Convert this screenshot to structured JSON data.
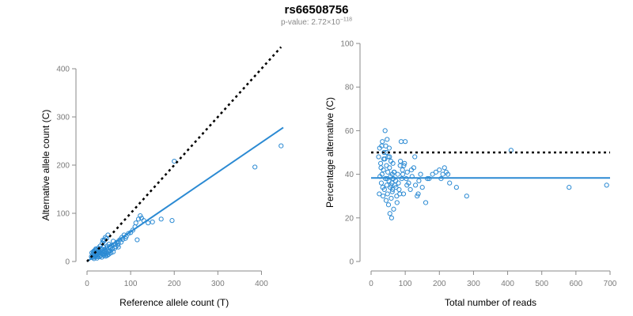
{
  "title": "rs66508756",
  "subtitle": {
    "prefix": "p-value: 2.72×10",
    "exponent": "−118"
  },
  "chart_data": [
    {
      "type": "scatter",
      "xlabel": "Reference allele count (T)",
      "ylabel": "Alternative allele count (C)",
      "xlim": [
        0,
        450
      ],
      "ylim": [
        0,
        400
      ],
      "xticks": [
        0,
        100,
        200,
        300,
        400
      ],
      "yticks": [
        0,
        100,
        200,
        300,
        400
      ],
      "grid": false,
      "series": [
        {
          "role": "observations",
          "points": [
            [
              10,
              10
            ],
            [
              11,
              18
            ],
            [
              12,
              8
            ],
            [
              13,
              14
            ],
            [
              14,
              20
            ],
            [
              15,
              12
            ],
            [
              16,
              22
            ],
            [
              17,
              9
            ],
            [
              18,
              16
            ],
            [
              19,
              24
            ],
            [
              20,
              11
            ],
            [
              21,
              19
            ],
            [
              22,
              14
            ],
            [
              23,
              7
            ],
            [
              24,
              21
            ],
            [
              25,
              17
            ],
            [
              26,
              12
            ],
            [
              27,
              25
            ],
            [
              28,
              15
            ],
            [
              29,
              10
            ],
            [
              30,
              20
            ],
            [
              31,
              13
            ],
            [
              32,
              27
            ],
            [
              33,
              18
            ],
            [
              34,
              9
            ],
            [
              35,
              16
            ],
            [
              36,
              22
            ],
            [
              37,
              14
            ],
            [
              38,
              30
            ],
            [
              39,
              12
            ],
            [
              40,
              19
            ],
            [
              41,
              25
            ],
            [
              42,
              16
            ],
            [
              43,
              11
            ],
            [
              44,
              21
            ],
            [
              45,
              28
            ],
            [
              46,
              17
            ],
            [
              47,
              13
            ],
            [
              48,
              24
            ],
            [
              49,
              20
            ],
            [
              50,
              15
            ],
            [
              52,
              30
            ],
            [
              53,
              22
            ],
            [
              55,
              18
            ],
            [
              56,
              33
            ],
            [
              58,
              26
            ],
            [
              60,
              20
            ],
            [
              62,
              35
            ],
            [
              64,
              28
            ],
            [
              66,
              31
            ],
            [
              68,
              40
            ],
            [
              70,
              34
            ],
            [
              72,
              38
            ],
            [
              75,
              45
            ],
            [
              78,
              40
            ],
            [
              80,
              50
            ],
            [
              82,
              46
            ],
            [
              85,
              55
            ],
            [
              88,
              48
            ],
            [
              90,
              52
            ],
            [
              35,
              38
            ],
            [
              40,
              45
            ],
            [
              45,
              48
            ],
            [
              48,
              55
            ],
            [
              42,
              50
            ],
            [
              36,
              44
            ],
            [
              30,
              32
            ],
            [
              26,
              28
            ],
            [
              22,
              24
            ],
            [
              38,
              42
            ],
            [
              95,
              58
            ],
            [
              100,
              60
            ],
            [
              105,
              65
            ],
            [
              110,
              72
            ],
            [
              112,
              80
            ],
            [
              115,
              45
            ],
            [
              118,
              88
            ],
            [
              122,
              95
            ],
            [
              125,
              90
            ],
            [
              130,
              85
            ],
            [
              140,
              80
            ],
            [
              150,
              82
            ],
            [
              170,
              88
            ],
            [
              195,
              85
            ],
            [
              200,
              208
            ],
            [
              385,
              196
            ],
            [
              445,
              240
            ],
            [
              14,
              16
            ],
            [
              16,
              6
            ],
            [
              18,
              12
            ],
            [
              20,
              26
            ],
            [
              24,
              10
            ],
            [
              28,
              22
            ],
            [
              32,
              18
            ],
            [
              34,
              26
            ],
            [
              44,
              14
            ],
            [
              46,
              32
            ],
            [
              50,
              36
            ],
            [
              54,
              28
            ],
            [
              60,
              42
            ],
            [
              65,
              36
            ],
            [
              72,
              30
            ]
          ]
        },
        {
          "role": "fitted-line",
          "x": [
            0,
            450
          ],
          "y": [
            0,
            278
          ]
        },
        {
          "role": "reference-line",
          "x": [
            0,
            445
          ],
          "y": [
            0,
            445
          ]
        }
      ]
    },
    {
      "type": "scatter",
      "xlabel": "Total number of reads",
      "ylabel": "Percentage alternative (C)",
      "xlim": [
        0,
        700
      ],
      "ylim": [
        0,
        100
      ],
      "xticks": [
        0,
        100,
        200,
        300,
        400,
        500,
        600,
        700
      ],
      "yticks": [
        0,
        20,
        40,
        60,
        80,
        100
      ],
      "grid": false,
      "series": [
        {
          "role": "observations",
          "points": [
            [
              22,
              48
            ],
            [
              25,
              52
            ],
            [
              28,
              45
            ],
            [
              30,
              36
            ],
            [
              32,
              40
            ],
            [
              33,
              55
            ],
            [
              35,
              30
            ],
            [
              36,
              42
            ],
            [
              38,
              50
            ],
            [
              39,
              33
            ],
            [
              40,
              47
            ],
            [
              41,
              60
            ],
            [
              42,
              38
            ],
            [
              43,
              53
            ],
            [
              44,
              28
            ],
            [
              45,
              44
            ],
            [
              46,
              35
            ],
            [
              47,
              56
            ],
            [
              48,
              31
            ],
            [
              49,
              41
            ],
            [
              50,
              48
            ],
            [
              51,
              26
            ],
            [
              52,
              37
            ],
            [
              53,
              52
            ],
            [
              54,
              43
            ],
            [
              55,
              22
            ],
            [
              56,
              34
            ],
            [
              57,
              39
            ],
            [
              58,
              46
            ],
            [
              59,
              29
            ],
            [
              60,
              20
            ],
            [
              61,
              36
            ],
            [
              62,
              40
            ],
            [
              63,
              33
            ],
            [
              64,
              45
            ],
            [
              65,
              38
            ],
            [
              66,
              24
            ],
            [
              68,
              41
            ],
            [
              70,
              35
            ],
            [
              72,
              37
            ],
            [
              75,
              30
            ],
            [
              78,
              40
            ],
            [
              80,
              36
            ],
            [
              82,
              33
            ],
            [
              85,
              44
            ],
            [
              88,
              55
            ],
            [
              90,
              38
            ],
            [
              92,
              42
            ],
            [
              95,
              31
            ],
            [
              98,
              45
            ],
            [
              100,
              55
            ],
            [
              103,
              38
            ],
            [
              106,
              41
            ],
            [
              110,
              36
            ],
            [
              115,
              33
            ],
            [
              120,
              39
            ],
            [
              125,
              43
            ],
            [
              130,
              35
            ],
            [
              135,
              30
            ],
            [
              140,
              37
            ],
            [
              145,
              40
            ],
            [
              150,
              34
            ],
            [
              160,
              27
            ],
            [
              170,
              38
            ],
            [
              180,
              40
            ],
            [
              190,
              41
            ],
            [
              200,
              42
            ],
            [
              210,
              40
            ],
            [
              215,
              43
            ],
            [
              220,
              41
            ],
            [
              230,
              36
            ],
            [
              250,
              34
            ],
            [
              280,
              30
            ],
            [
              410,
              51
            ],
            [
              580,
              34
            ],
            [
              690,
              35
            ],
            [
              26,
              39
            ],
            [
              34,
              34
            ],
            [
              37,
              47
            ],
            [
              45,
              50
            ],
            [
              54,
              48
            ],
            [
              58,
              35
            ],
            [
              67,
              41
            ],
            [
              76,
              27
            ],
            [
              86,
              46
            ],
            [
              96,
              44
            ],
            [
              105,
              35
            ],
            [
              118,
              42
            ],
            [
              128,
              48
            ],
            [
              138,
              31
            ],
            [
              165,
              38
            ],
            [
              205,
              38
            ],
            [
              225,
              40
            ],
            [
              24,
              31
            ],
            [
              29,
              43
            ],
            [
              31,
              53
            ],
            [
              47,
              38
            ],
            [
              62,
              32
            ],
            [
              73,
              34
            ],
            [
              84,
              31
            ],
            [
              93,
              40
            ]
          ]
        },
        {
          "role": "fitted-line",
          "x": [
            0,
            700
          ],
          "y": [
            38.3,
            38.3
          ]
        },
        {
          "role": "reference-line",
          "x": [
            0,
            700
          ],
          "y": [
            50,
            50
          ]
        }
      ]
    }
  ]
}
